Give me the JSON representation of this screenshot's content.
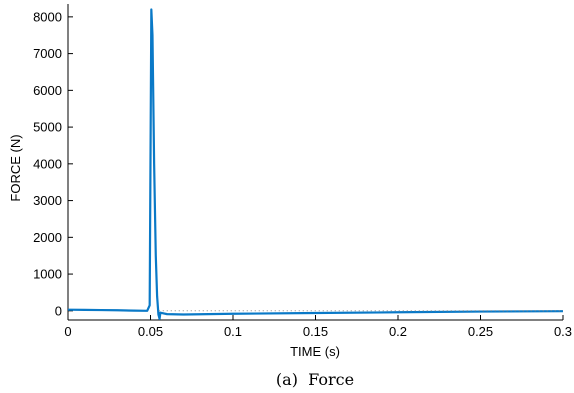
{
  "chart_data": {
    "type": "line",
    "xlabel": "TIME (s)",
    "ylabel": "FORCE (N)",
    "xlim": [
      0,
      0.3
    ],
    "ylim": [
      -250,
      8350
    ],
    "xticks": [
      0,
      0.05,
      0.1,
      0.15,
      0.2,
      0.25,
      0.3
    ],
    "xtick_labels": [
      "0",
      "0.05",
      "0.1",
      "0.15",
      "0.2",
      "0.25",
      "0.3"
    ],
    "yticks": [
      0,
      1000,
      2000,
      3000,
      4000,
      5000,
      6000,
      7000,
      8000
    ],
    "ytick_labels": [
      "0",
      "1000",
      "2000",
      "3000",
      "4000",
      "5000",
      "6000",
      "7000",
      "8000"
    ],
    "grid": false,
    "series": [
      {
        "color": "#0a79c7",
        "x": [
          0,
          0.01,
          0.02,
          0.03,
          0.04,
          0.048,
          0.0495,
          0.0505,
          0.0512,
          0.0522,
          0.0532,
          0.054,
          0.0548,
          0.0555,
          0.056,
          0.057,
          0.06,
          0.07,
          0.1,
          0.15,
          0.2,
          0.25,
          0.3
        ],
        "y": [
          30,
          25,
          20,
          15,
          5,
          0,
          150,
          8200,
          7500,
          4000,
          1500,
          400,
          -100,
          -220,
          -50,
          -60,
          -90,
          -100,
          -80,
          -60,
          -40,
          -20,
          -10
        ]
      },
      {
        "style": "dotted",
        "color": "#888888",
        "x": [
          0.055,
          0.3
        ],
        "y": [
          0,
          0
        ]
      }
    ],
    "caption": "(a)  Force"
  }
}
